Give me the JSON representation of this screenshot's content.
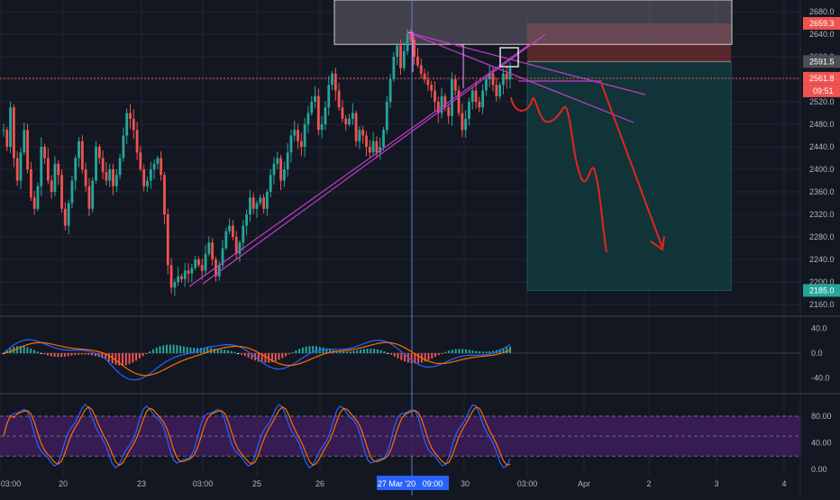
{
  "chart_data": {
    "type": "candlestick",
    "symbol_hint": "",
    "colors": {
      "background": "#131722",
      "up": "#26a69a",
      "down": "#ef5350",
      "grid": "#1f2433",
      "axis_text": "#b2b5be",
      "trendline": "#c03ec8",
      "projection": "#e52323",
      "macd_line": "#2962ff",
      "signal_line": "#ff6d00",
      "stoch_band": "#3c1c59",
      "stoch_k": "#2962ff",
      "stoch_d": "#ff6d00"
    },
    "price_panel": {
      "ylim": [
        2140,
        2690
      ],
      "y_ticks": [
        "2680.0",
        "2640.0",
        "2600.0",
        "2560.0",
        "2520.0",
        "2480.0",
        "2440.0",
        "2400.0",
        "2360.0",
        "2320.0",
        "2280.0",
        "2240.0",
        "2200.0",
        "2160.0"
      ],
      "close_segments": [
        [
          2470,
          2440,
          2510,
          2420,
          2380,
          2430,
          2470,
          2400,
          2350,
          2330,
          2370,
          2440,
          2420,
          2380,
          2360,
          2410,
          2390,
          2330,
          2300,
          2340,
          2380,
          2420,
          2450,
          2400,
          2370
        ],
        [
          2330,
          2380,
          2440,
          2420,
          2395,
          2380,
          2400,
          2370,
          2390,
          2420,
          2460,
          2500,
          2490,
          2470,
          2430,
          2400,
          2370,
          2380,
          2400,
          2410
        ],
        [
          2420,
          2390,
          2320,
          2230,
          2190,
          2200,
          2210,
          2205,
          2220,
          2215,
          2225,
          2240,
          2230,
          2220,
          2250,
          2270,
          2240,
          2210,
          2230,
          2260,
          2290,
          2300,
          2280,
          2250,
          2270,
          2300,
          2320,
          2350
        ],
        [
          2330,
          2340,
          2350,
          2330,
          2360,
          2390,
          2410,
          2420,
          2380,
          2400,
          2430,
          2460,
          2470,
          2450,
          2440,
          2480,
          2500,
          2520,
          2530,
          2470,
          2480,
          2510,
          2550,
          2570,
          2540,
          2510,
          2490,
          2480,
          2490,
          2500,
          2450,
          2470,
          2460,
          2440,
          2430,
          2450,
          2430,
          2440
        ],
        [
          2470,
          2520,
          2560,
          2600,
          2620,
          2580,
          2610,
          2640,
          2630,
          2600,
          2585,
          2570,
          2560,
          2550,
          2540,
          2520,
          2500,
          2530,
          2510,
          2495,
          2560,
          2540,
          2500
        ],
        [
          2470,
          2490,
          2520,
          2540,
          2520,
          2510,
          2540,
          2560,
          2570,
          2550,
          2530,
          2550,
          2570,
          2560,
          2580
        ]
      ],
      "start_price": 2470,
      "x_labels": [
        "03:00",
        "20",
        "23",
        "03:00",
        "25",
        "26",
        "27 Mar '20",
        "09:00",
        "30",
        "03:00",
        "Apr",
        "2",
        "3",
        "4"
      ],
      "crosshair_price": "2561.8",
      "price_labels": [
        {
          "value": 2659.3,
          "text": "2659.3",
          "color": "#ef5350"
        },
        {
          "value": 2591.5,
          "text": "2591.5",
          "color": "#4d4d54"
        },
        {
          "value": 2561.8,
          "text": "2561.8",
          "color": "#ef5350"
        },
        {
          "value": 2185.0,
          "text": "2185.0",
          "color": "#26a69a"
        }
      ],
      "countdown": "09:51",
      "stop_zone": [
        2591.5,
        2659.3
      ],
      "target_zone": [
        2185.0,
        2591.5
      ],
      "entry_price": 2591.5,
      "gray_box_bottom": 2622
    },
    "macd_panel": {
      "ylim": [
        -60,
        60
      ],
      "y_ticks": [
        "40.0",
        "0.0",
        "-40.0"
      ],
      "histogram_note": "green above zero, red below zero"
    },
    "stoch_panel": {
      "ylim": [
        -10,
        105
      ],
      "y_ticks": [
        "80.00",
        "40.00",
        "0.00"
      ],
      "band": [
        20,
        80
      ]
    }
  }
}
